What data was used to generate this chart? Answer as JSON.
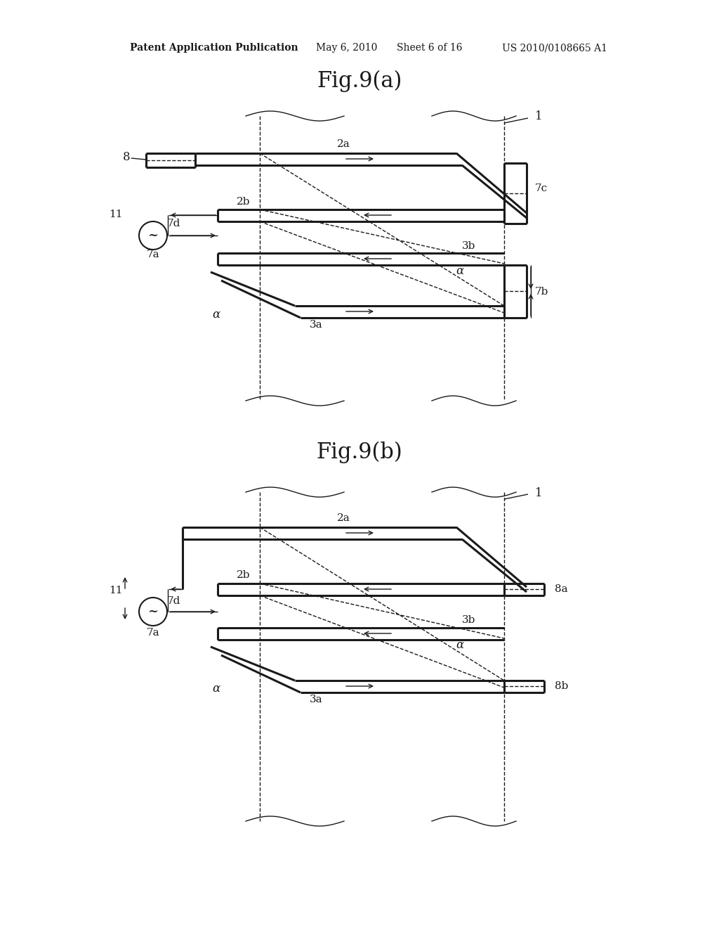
{
  "bg_color": "#ffffff",
  "line_color": "#1a1a1a",
  "header_text": "Patent Application Publication",
  "header_date": "May 6, 2010",
  "header_sheet": "Sheet 6 of 16",
  "header_patent": "US 2010/0108665 A1",
  "fig_a_title": "Fig.9(a)",
  "fig_b_title": "Fig.9(b)",
  "label_color": "#1a1a1a"
}
